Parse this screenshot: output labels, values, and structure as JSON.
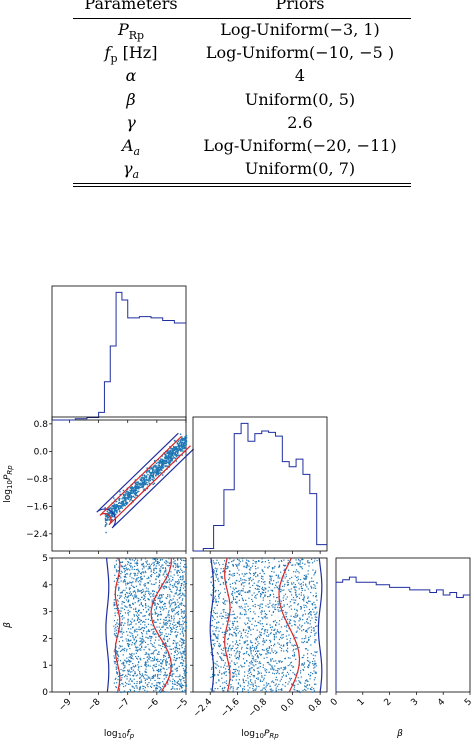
{
  "table": {
    "headers": [
      "Parameters",
      "Priors"
    ],
    "rows": [
      {
        "param": "P_Rp",
        "param_display": "P",
        "param_sub": "Rp",
        "prior": "Log-Uniform(−3, 1)"
      },
      {
        "param": "f_p [Hz]",
        "param_display": "f",
        "param_sub": "p",
        "param_suffix": " [Hz]",
        "prior": "Log-Uniform(−10, −5 )"
      },
      {
        "param": "α",
        "param_display": "α",
        "param_sub": "",
        "prior": "4"
      },
      {
        "param": "β",
        "param_display": "β",
        "param_sub": "",
        "prior": "Uniform(0, 5)"
      },
      {
        "param": "γ",
        "param_display": "γ",
        "param_sub": "",
        "prior": "2.6"
      },
      {
        "param": "A_a",
        "param_display": "A",
        "param_sub": "a",
        "prior": "Log-Uniform(−20, −11)"
      },
      {
        "param": "γ_a",
        "param_display": "γ",
        "param_sub": "a",
        "prior": "Uniform(0, 7)"
      }
    ]
  },
  "chart_data": {
    "type": "corner",
    "parameters": [
      "log10_fp",
      "log10_PRp",
      "beta"
    ],
    "axis_labels": {
      "log10_fp": "log10 f_p",
      "log10_PRp": "log10 P_Rp",
      "beta": "β"
    },
    "axis_label_display": {
      "log10_fp": {
        "main": "log",
        "sub": "10",
        "var": "f",
        "varsub": "p"
      },
      "log10_PRp": {
        "main": "log",
        "sub": "10",
        "var": "P",
        "varsub": "Rp"
      },
      "beta": {
        "main": "",
        "sub": "",
        "var": "β",
        "varsub": ""
      }
    },
    "ranges": {
      "log10_fp": [
        -9.6,
        -5.0
      ],
      "log10_PRp": [
        -2.9,
        1.0
      ],
      "beta": [
        0.0,
        5.0
      ]
    },
    "ticks": {
      "log10_fp": [
        -9,
        -8,
        -7,
        -6,
        -5
      ],
      "log10_PRp": [
        -2.4,
        -1.6,
        -0.8,
        0.0,
        0.8
      ],
      "beta": [
        0,
        1,
        2,
        3,
        4,
        5
      ]
    },
    "tick_labels": {
      "log10_fp": [
        "−9",
        "−8",
        "−7",
        "−6",
        "−5"
      ],
      "log10_PRp": [
        "−2.4",
        "−1.6",
        "−0.8",
        "0.0",
        "0.8"
      ],
      "beta": [
        "0",
        "1",
        "2",
        "3",
        "4",
        "5"
      ]
    },
    "colors": {
      "hist": "#1f2fa0",
      "contour_outer": "#1f2fa0",
      "contour_inner": "#d62728",
      "points": "#1f77b4"
    },
    "hist_log10_fp": {
      "edges": [
        -9.6,
        -9.2,
        -8.8,
        -8.4,
        -8.0,
        -7.8,
        -7.6,
        -7.4,
        -7.2,
        -7.0,
        -6.6,
        -6.2,
        -5.8,
        -5.4,
        -5.0
      ],
      "density": [
        0.0,
        0.0,
        0.01,
        0.02,
        0.06,
        0.3,
        0.58,
        1.0,
        0.94,
        0.8,
        0.81,
        0.8,
        0.78,
        0.76
      ]
    },
    "hist_log10_PRp": {
      "edges": [
        -2.9,
        -2.6,
        -2.3,
        -2.0,
        -1.7,
        -1.5,
        -1.3,
        -1.1,
        -0.9,
        -0.7,
        -0.5,
        -0.3,
        -0.1,
        0.1,
        0.3,
        0.5,
        0.7,
        1.0
      ],
      "density": [
        0.0,
        0.02,
        0.2,
        0.48,
        0.92,
        1.0,
        0.86,
        0.92,
        0.94,
        0.93,
        0.9,
        0.7,
        0.66,
        0.72,
        0.6,
        0.45,
        0.05
      ]
    },
    "hist_beta": {
      "edges": [
        0.0,
        0.25,
        0.5,
        0.75,
        1.0,
        1.25,
        1.5,
        1.75,
        2.0,
        2.25,
        2.5,
        2.75,
        3.0,
        3.25,
        3.5,
        3.75,
        4.0,
        4.25,
        4.5,
        4.75,
        5.0
      ],
      "density": [
        0.86,
        0.88,
        0.9,
        0.86,
        0.86,
        0.86,
        0.84,
        0.84,
        0.82,
        0.82,
        0.82,
        0.8,
        0.8,
        0.8,
        0.78,
        0.8,
        0.76,
        0.78,
        0.74,
        0.76
      ]
    }
  }
}
